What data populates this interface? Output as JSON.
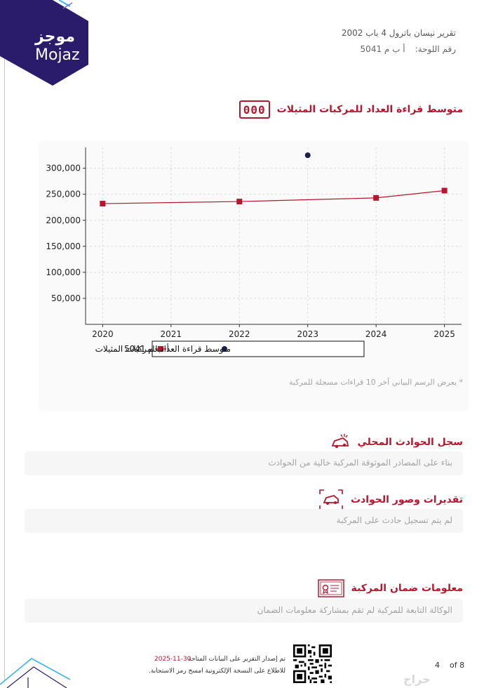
{
  "brand": {
    "name_ar": "موجز",
    "name_en": "Mojaz",
    "color": "#2b1b6b"
  },
  "header": {
    "report_title": "تقرير نيسان باترول 4 باب 2002",
    "plate_label": "رقم اللوحة:",
    "plate_value": "أ ب م 5041"
  },
  "odometer_section": {
    "icon": "odometer-icon",
    "icon_text": "000",
    "title": "متوسط قراءة العداد للمركبات المثيلات",
    "note": "* يعرض الرسم البياني آخر 10 قراءات مسجلة للمركبة"
  },
  "chart_data": {
    "type": "line",
    "x": [
      2020,
      2021,
      2022,
      2023,
      2024,
      2025
    ],
    "xticks": [
      "2020",
      "2021",
      "2022",
      "2023",
      "2024",
      "2025"
    ],
    "yticks": [
      "50,000",
      "100,000",
      "150,000",
      "200,000",
      "250,000",
      "300,000"
    ],
    "ylim": [
      0,
      340000
    ],
    "xlim": [
      2019.75,
      2025.25
    ],
    "grid": true,
    "legend_placement": "bottom-center",
    "series": [
      {
        "name": "أ ب م 5041",
        "marker": "square",
        "color": "#b3182e",
        "points": [
          [
            2020,
            232000
          ],
          [
            2022,
            236000
          ],
          [
            2024,
            243000
          ],
          [
            2025,
            257000
          ]
        ]
      },
      {
        "name": "متوسط قراءة العداد للمركبات المثيلات",
        "marker": "circle",
        "color": "#1c1f4f",
        "points": [
          [
            2023,
            325000
          ]
        ]
      }
    ]
  },
  "sections": {
    "local_accidents": {
      "icon": "car-crash-icon",
      "title": "سجل الحوادث المحلي",
      "text": "بناء على المصادر الموثوقة المركبة خالية من الحوادث"
    },
    "accident_photos": {
      "icon": "damaged-car-icon",
      "title": "تقديرات وصور الحوادث",
      "text": "لم يتم تسجيل حادث على المركبة"
    },
    "warranty": {
      "icon": "certificate-icon",
      "title": "معلومات ضمان المركبة",
      "text": "الوكالة التابعة للمركبة لم تقم بمشاركة معلومات الضمان"
    }
  },
  "footer": {
    "issued_text": "تم إصدار التقرير على البيانات المتاحة",
    "date": "2025-11-30",
    "scan_text": "للاطلاع على النسخة الإلكترونية امسح رمز الاستجابة.",
    "page_current": "4",
    "page_of": "of 8",
    "watermark": "حراج"
  },
  "colors": {
    "accent": "#b3182e",
    "navy": "#2b1b6b",
    "muted": "#a3a3a3"
  }
}
